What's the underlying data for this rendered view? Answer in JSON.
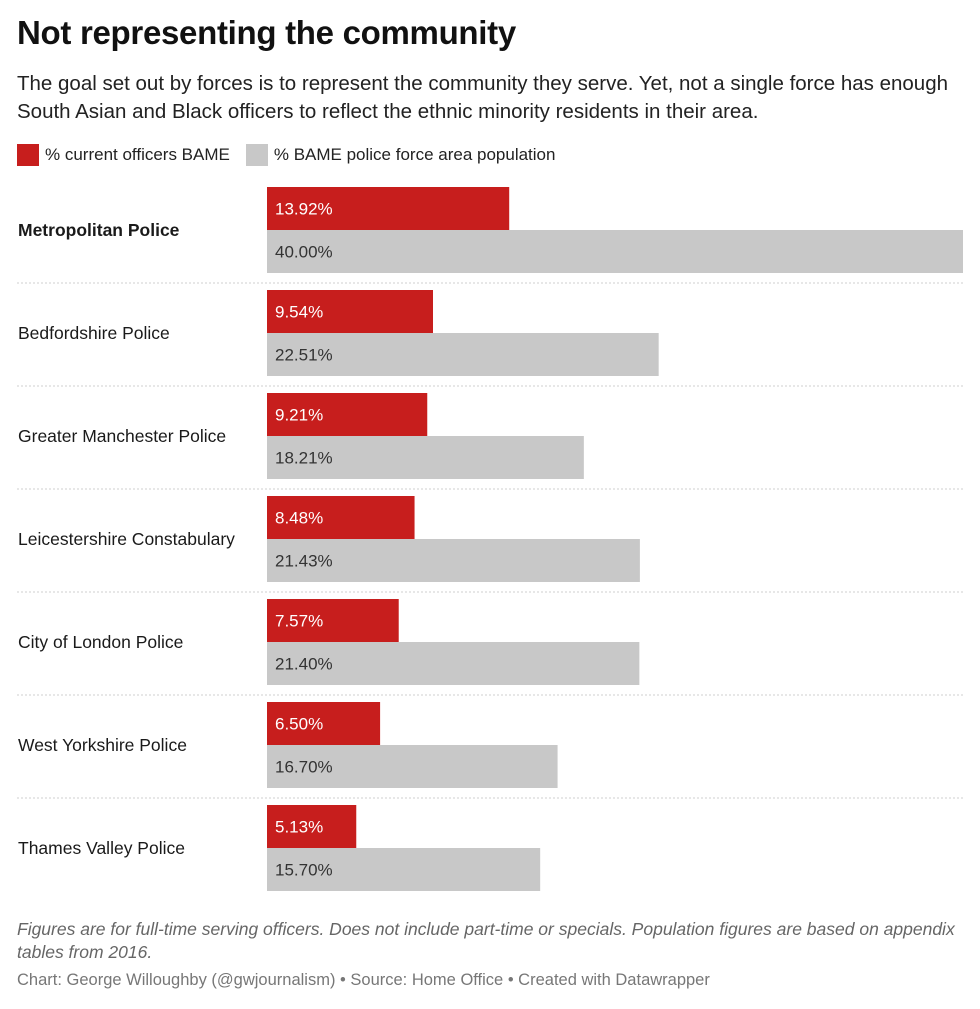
{
  "title": "Not representing the community",
  "subtitle": "The goal set out by forces is to represent the community they serve. Yet, not a single force has enough South Asian and Black officers to reflect the ethnic minority residents in their area.",
  "legend": [
    {
      "label": "% current officers BAME",
      "color": "#c71e1d"
    },
    {
      "label": "% BAME police force area population",
      "color": "#c8c8c8"
    }
  ],
  "chart_data": {
    "type": "bar",
    "orientation": "horizontal",
    "categories": [
      "Metropolitan Police",
      "Bedfordshire Police",
      "Greater Manchester Police",
      "Leicestershire Constabulary",
      "City of London Police",
      "West Yorkshire Police",
      "Thames Valley Police"
    ],
    "highlighted_category": "Metropolitan Police",
    "series": [
      {
        "name": "% current officers BAME",
        "color": "#c71e1d",
        "values": [
          13.92,
          9.54,
          9.21,
          8.48,
          7.57,
          6.5,
          5.13
        ],
        "labels": [
          "13.92%",
          "9.54%",
          "9.21%",
          "8.48%",
          "7.57%",
          "6.50%",
          "5.13%"
        ]
      },
      {
        "name": "% BAME police force area population",
        "color": "#c8c8c8",
        "values": [
          40.0,
          22.51,
          18.21,
          21.43,
          21.4,
          16.7,
          15.7
        ],
        "labels": [
          "40.00%",
          "22.51%",
          "18.21%",
          "21.43%",
          "21.40%",
          "16.70%",
          "15.70%"
        ]
      }
    ],
    "xlim": [
      0,
      40
    ]
  },
  "note": "Figures are for full-time serving officers. Does not include part-time or specials. Population figures are based on appendix tables from 2016.",
  "credit": "Chart: George Willoughby (@gwjournalism) • Source: Home Office • Created with Datawrapper"
}
